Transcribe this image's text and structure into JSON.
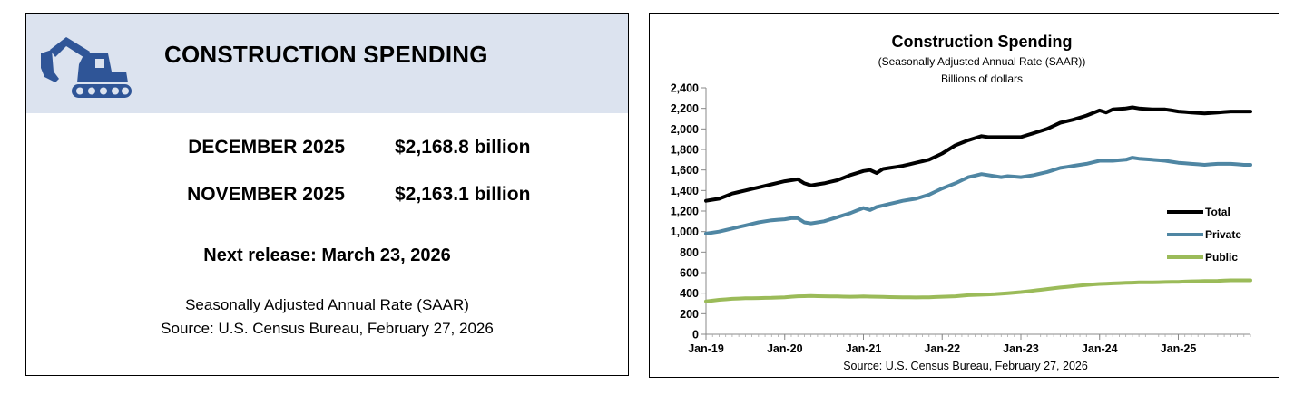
{
  "summary": {
    "title": "CONSTRUCTION SPENDING",
    "icon": "excavator-icon",
    "rows": [
      {
        "label": "DECEMBER 2025",
        "value": "$2,168.8 billion"
      },
      {
        "label": "NOVEMBER 2025",
        "value": "$2,163.1 billion"
      }
    ],
    "next_release": "Next release: March 23, 2026",
    "note1": "Seasonally Adjusted Annual Rate (SAAR)",
    "note2": "Source: U.S. Census Bureau, February 27, 2026"
  },
  "colors": {
    "header_bg": "#dce3ef",
    "icon": "#2f5597",
    "total": "#000000",
    "private": "#4f86a3",
    "public": "#9bbb59"
  },
  "chart_data": {
    "type": "line",
    "title": "Construction Spending",
    "subtitle1": "(Seasonally Adjusted Annual Rate (SAAR))",
    "subtitle2": "Billions of dollars",
    "source": "Source: U.S. Census Bureau, February 27, 2026",
    "xlabel": "",
    "ylabel": "",
    "ylim": [
      0,
      2400
    ],
    "yticks": [
      0,
      200,
      400,
      600,
      800,
      1000,
      1200,
      1400,
      1600,
      1800,
      2000,
      2200,
      2400
    ],
    "ytick_labels": [
      "0",
      "200",
      "400",
      "600",
      "800",
      "1,000",
      "1,200",
      "1,400",
      "1,600",
      "1,800",
      "2,000",
      "2,200",
      "2,400"
    ],
    "x_start": "Jan-19",
    "n_months": 84,
    "xticks": [
      {
        "index": 0,
        "label": "Jan-19"
      },
      {
        "index": 12,
        "label": "Jan-20"
      },
      {
        "index": 24,
        "label": "Jan-21"
      },
      {
        "index": 36,
        "label": "Jan-22"
      },
      {
        "index": 48,
        "label": "Jan-23"
      },
      {
        "index": 60,
        "label": "Jan-24"
      },
      {
        "index": 72,
        "label": "Jan-25"
      }
    ],
    "legend_position": "right",
    "series": [
      {
        "name": "Total",
        "color": "#000000",
        "anchors": [
          [
            0,
            1300
          ],
          [
            2,
            1320
          ],
          [
            4,
            1370
          ],
          [
            6,
            1400
          ],
          [
            8,
            1430
          ],
          [
            10,
            1460
          ],
          [
            12,
            1490
          ],
          [
            13,
            1500
          ],
          [
            14,
            1510
          ],
          [
            15,
            1470
          ],
          [
            16,
            1450
          ],
          [
            18,
            1470
          ],
          [
            20,
            1500
          ],
          [
            22,
            1550
          ],
          [
            24,
            1590
          ],
          [
            25,
            1600
          ],
          [
            26,
            1570
          ],
          [
            27,
            1610
          ],
          [
            28,
            1620
          ],
          [
            30,
            1640
          ],
          [
            32,
            1670
          ],
          [
            34,
            1700
          ],
          [
            36,
            1760
          ],
          [
            38,
            1840
          ],
          [
            40,
            1890
          ],
          [
            42,
            1930
          ],
          [
            43,
            1920
          ],
          [
            46,
            1920
          ],
          [
            48,
            1920
          ],
          [
            50,
            1960
          ],
          [
            52,
            2000
          ],
          [
            54,
            2060
          ],
          [
            56,
            2090
          ],
          [
            58,
            2130
          ],
          [
            60,
            2180
          ],
          [
            61,
            2160
          ],
          [
            62,
            2190
          ],
          [
            64,
            2200
          ],
          [
            65,
            2210
          ],
          [
            66,
            2200
          ],
          [
            68,
            2190
          ],
          [
            70,
            2190
          ],
          [
            72,
            2170
          ],
          [
            74,
            2160
          ],
          [
            76,
            2150
          ],
          [
            78,
            2160
          ],
          [
            80,
            2170
          ],
          [
            82,
            2170
          ],
          [
            83,
            2170
          ]
        ]
      },
      {
        "name": "Private",
        "color": "#4f86a3",
        "anchors": [
          [
            0,
            980
          ],
          [
            2,
            1000
          ],
          [
            4,
            1030
          ],
          [
            6,
            1060
          ],
          [
            8,
            1090
          ],
          [
            10,
            1110
          ],
          [
            12,
            1120
          ],
          [
            13,
            1130
          ],
          [
            14,
            1130
          ],
          [
            15,
            1090
          ],
          [
            16,
            1080
          ],
          [
            18,
            1100
          ],
          [
            20,
            1140
          ],
          [
            22,
            1180
          ],
          [
            24,
            1230
          ],
          [
            25,
            1210
          ],
          [
            26,
            1240
          ],
          [
            28,
            1270
          ],
          [
            30,
            1300
          ],
          [
            32,
            1320
          ],
          [
            34,
            1360
          ],
          [
            36,
            1420
          ],
          [
            38,
            1470
          ],
          [
            40,
            1530
          ],
          [
            42,
            1560
          ],
          [
            43,
            1550
          ],
          [
            45,
            1530
          ],
          [
            46,
            1540
          ],
          [
            48,
            1530
          ],
          [
            50,
            1550
          ],
          [
            52,
            1580
          ],
          [
            54,
            1620
          ],
          [
            56,
            1640
          ],
          [
            58,
            1660
          ],
          [
            60,
            1690
          ],
          [
            62,
            1690
          ],
          [
            64,
            1700
          ],
          [
            65,
            1720
          ],
          [
            66,
            1710
          ],
          [
            68,
            1700
          ],
          [
            70,
            1690
          ],
          [
            72,
            1670
          ],
          [
            74,
            1660
          ],
          [
            76,
            1650
          ],
          [
            78,
            1660
          ],
          [
            80,
            1660
          ],
          [
            82,
            1650
          ],
          [
            83,
            1650
          ]
        ]
      },
      {
        "name": "Public",
        "color": "#9bbb59",
        "anchors": [
          [
            0,
            320
          ],
          [
            2,
            335
          ],
          [
            4,
            345
          ],
          [
            6,
            350
          ],
          [
            8,
            352
          ],
          [
            10,
            355
          ],
          [
            12,
            360
          ],
          [
            14,
            370
          ],
          [
            16,
            372
          ],
          [
            18,
            370
          ],
          [
            20,
            368
          ],
          [
            22,
            365
          ],
          [
            24,
            368
          ],
          [
            26,
            365
          ],
          [
            28,
            362
          ],
          [
            30,
            360
          ],
          [
            32,
            358
          ],
          [
            34,
            360
          ],
          [
            36,
            365
          ],
          [
            38,
            370
          ],
          [
            40,
            380
          ],
          [
            42,
            385
          ],
          [
            44,
            390
          ],
          [
            46,
            400
          ],
          [
            48,
            410
          ],
          [
            50,
            425
          ],
          [
            52,
            440
          ],
          [
            54,
            455
          ],
          [
            56,
            468
          ],
          [
            58,
            480
          ],
          [
            60,
            490
          ],
          [
            62,
            495
          ],
          [
            64,
            500
          ],
          [
            66,
            505
          ],
          [
            68,
            505
          ],
          [
            70,
            508
          ],
          [
            72,
            510
          ],
          [
            74,
            515
          ],
          [
            76,
            518
          ],
          [
            78,
            520
          ],
          [
            80,
            525
          ],
          [
            82,
            525
          ],
          [
            83,
            525
          ]
        ]
      }
    ]
  }
}
